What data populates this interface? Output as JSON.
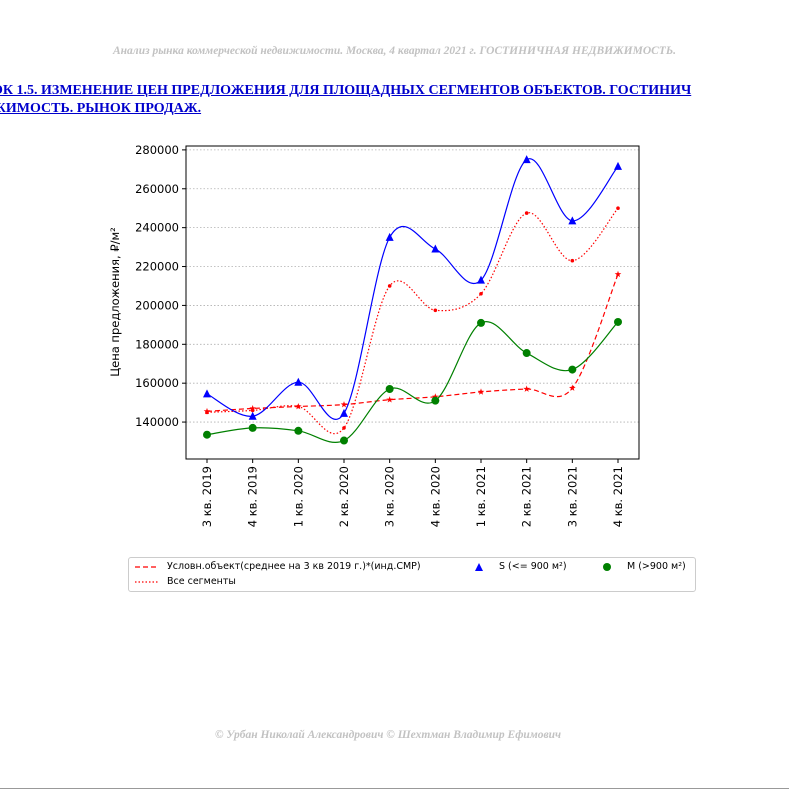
{
  "page": {
    "header": "Анализ рынка коммерческой недвижимости.   Москва, 4 квартал 2021 г.   ГОСТИНИЧНАЯ НЕДВИЖИМОСТЬ.",
    "heading_line1": "ОК 1.5. ИЗМЕНЕНИЕ ЦЕН ПРЕДЛОЖЕНИЯ ДЛЯ ПЛОЩАДНЫХ СЕГМЕНТОВ ОБЪЕКТОВ. ГОСТИНИЧ",
    "heading_line2": "ЖИМОСТЬ. РЫНОК ПРОДАЖ.",
    "footer": "© Урбан Николай Александрович   © Шехтман Владимир Ефимович"
  },
  "chart_data": {
    "type": "line",
    "title": "",
    "xlabel": "",
    "ylabel": "Цена предложения, ₽/м²",
    "categories": [
      "3 кв. 2019",
      "4 кв. 2019",
      "1 кв. 2020",
      "2 кв. 2020",
      "3 кв. 2020",
      "4 кв. 2020",
      "1 кв. 2021",
      "2 кв. 2021",
      "3 кв. 2021",
      "4 кв. 2021"
    ],
    "ylim": [
      121000,
      282000
    ],
    "yticks": [
      140000,
      160000,
      180000,
      200000,
      220000,
      240000,
      260000,
      280000
    ],
    "grid": "horizontal dotted",
    "legend_position": "below",
    "series": [
      {
        "name": "Условн.объект(среднее на 3 кв 2019 г.)*(инд.СМР)",
        "color": "#ff0000",
        "style": "dashed",
        "marker": "star",
        "values": [
          145500,
          147000,
          148000,
          149000,
          151500,
          153000,
          155500,
          157000,
          157500,
          216000
        ]
      },
      {
        "name": "Все сегменты",
        "color": "#ff0000",
        "style": "dotted",
        "marker": "point",
        "values": [
          145000,
          146000,
          148000,
          137000,
          210000,
          197500,
          206000,
          247500,
          223000,
          250000
        ]
      },
      {
        "name": "S (<= 900 м²)",
        "color": "#0000ff",
        "style": "solid",
        "marker": "triangle",
        "values": [
          154500,
          143000,
          160500,
          144500,
          235000,
          229000,
          213000,
          275000,
          243500,
          271500
        ]
      },
      {
        "name": "M (>900 м²)",
        "color": "#008000",
        "style": "solid",
        "marker": "circle",
        "values": [
          133500,
          137000,
          135500,
          130500,
          157000,
          151000,
          191000,
          175500,
          167000,
          191500
        ]
      }
    ]
  }
}
